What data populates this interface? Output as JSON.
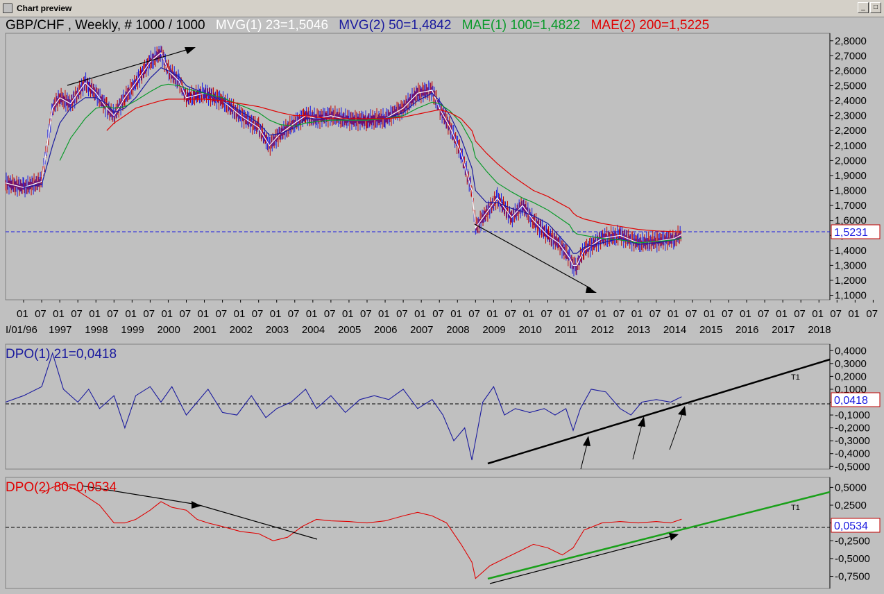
{
  "window": {
    "title": "Chart preview"
  },
  "header": {
    "instrument": "GBP/CHF , Weekly, # 1000 / 1000",
    "mvg1": {
      "text": "MVG(1) 23=1,5046",
      "color": "#ffffff"
    },
    "mvg2": {
      "text": "MVG(2) 50=1,4842",
      "color": "#1a1a9e"
    },
    "mae1": {
      "text": "MAE(1) 100=1,4822",
      "color": "#0a9a2a"
    },
    "mae2": {
      "text": "MAE(2) 200=1,5225",
      "color": "#e00000"
    }
  },
  "x_axis": {
    "month_ticks": [
      "01",
      "07",
      "01",
      "07",
      "01",
      "07",
      "01",
      "07",
      "01",
      "07",
      "01",
      "07",
      "01",
      "07",
      "01",
      "07",
      "01",
      "07",
      "01",
      "07",
      "01",
      "07",
      "01",
      "07",
      "01",
      "07",
      "01",
      "07",
      "01",
      "07",
      "01",
      "07",
      "01",
      "07",
      "01",
      "07",
      "01",
      "07",
      "01",
      "07",
      "01",
      "07",
      "01",
      "07",
      "01",
      "07",
      "01",
      "07",
      "01"
    ],
    "year_ticks": [
      "I/01/96",
      "1997",
      "1998",
      "1999",
      "2000",
      "2001",
      "2002",
      "2003",
      "2004",
      "2005",
      "2006",
      "2007",
      "2008",
      "2009",
      "2010",
      "2011",
      "2012",
      "2013",
      "2014",
      "2015",
      "2016",
      "2017",
      "2018"
    ]
  },
  "chart_data": [
    {
      "type": "line",
      "panel": "price",
      "ylim": [
        1.07,
        2.85
      ],
      "y_ticks": [
        "2,8000",
        "2,7000",
        "2,6000",
        "2,5000",
        "2,4000",
        "2,3000",
        "2,2000",
        "2,1000",
        "2,0000",
        "1,9000",
        "1,8000",
        "1,7000",
        "1,6000",
        "1,5000",
        "1,4000",
        "1,3000",
        "1,2000",
        "1,1000"
      ],
      "x": [
        1996.0,
        1996.5,
        1997.0,
        1997.3,
        1997.5,
        1997.8,
        1998.2,
        1998.5,
        1998.8,
        1999.0,
        1999.3,
        1999.6,
        2000.0,
        2000.3,
        2000.5,
        2000.8,
        2001.0,
        2001.5,
        2002.0,
        2002.5,
        2003.0,
        2003.3,
        2003.6,
        2004.0,
        2004.3,
        2004.6,
        2005.0,
        2005.5,
        2006.0,
        2006.5,
        2007.0,
        2007.4,
        2007.8,
        2008.0,
        2008.3,
        2008.6,
        2008.9,
        2009.0,
        2009.3,
        2009.6,
        2010.0,
        2010.3,
        2010.6,
        2011.0,
        2011.3,
        2011.6,
        2011.7,
        2011.8,
        2012.0,
        2012.5,
        2013.0,
        2013.5,
        2014.0,
        2014.5,
        2014.7
      ],
      "series": [
        {
          "name": "MVG(1) 23",
          "values": [
            1.85,
            1.82,
            1.86,
            2.35,
            2.42,
            2.38,
            2.52,
            2.45,
            2.35,
            2.3,
            2.42,
            2.52,
            2.66,
            2.72,
            2.6,
            2.53,
            2.42,
            2.45,
            2.4,
            2.3,
            2.22,
            2.1,
            2.18,
            2.25,
            2.3,
            2.28,
            2.3,
            2.27,
            2.27,
            2.28,
            2.35,
            2.45,
            2.47,
            2.35,
            2.22,
            2.05,
            1.8,
            1.55,
            1.65,
            1.75,
            1.62,
            1.7,
            1.6,
            1.5,
            1.45,
            1.35,
            1.3,
            1.3,
            1.4,
            1.48,
            1.5,
            1.45,
            1.46,
            1.48,
            1.5046
          ],
          "color": "#ffffff"
        },
        {
          "name": "MVG(2) 50",
          "values": [
            null,
            1.82,
            1.84,
            2.1,
            2.25,
            2.35,
            2.42,
            2.42,
            2.38,
            2.32,
            2.35,
            2.42,
            2.55,
            2.62,
            2.6,
            2.56,
            2.5,
            2.45,
            2.4,
            2.33,
            2.25,
            2.17,
            2.18,
            2.22,
            2.28,
            2.28,
            2.28,
            2.27,
            2.27,
            2.28,
            2.32,
            2.4,
            2.45,
            2.4,
            2.3,
            2.15,
            1.95,
            1.8,
            1.72,
            1.72,
            1.68,
            1.66,
            1.63,
            1.58,
            1.5,
            1.42,
            1.38,
            1.38,
            1.42,
            1.45,
            1.48,
            1.44,
            1.45,
            1.47,
            1.4842
          ],
          "color": "#1a1a9e"
        },
        {
          "name": "MAE(1) 100",
          "values": [
            null,
            null,
            null,
            null,
            2.0,
            2.15,
            2.28,
            2.35,
            2.36,
            2.35,
            2.36,
            2.4,
            2.46,
            2.5,
            2.51,
            2.5,
            2.48,
            2.45,
            2.42,
            2.37,
            2.32,
            2.27,
            2.24,
            2.23,
            2.25,
            2.26,
            2.27,
            2.27,
            2.27,
            2.28,
            2.3,
            2.35,
            2.39,
            2.38,
            2.33,
            2.25,
            2.12,
            2.02,
            1.93,
            1.85,
            1.79,
            1.75,
            1.72,
            1.67,
            1.62,
            1.57,
            1.53,
            1.51,
            1.5,
            1.48,
            1.47,
            1.45,
            1.46,
            1.47,
            1.4822
          ],
          "color": "#0a9a2a"
        },
        {
          "name": "MAE(2) 200",
          "values": [
            null,
            null,
            null,
            null,
            null,
            null,
            null,
            null,
            2.2,
            2.25,
            2.3,
            2.35,
            2.38,
            2.4,
            2.41,
            2.41,
            2.41,
            2.41,
            2.4,
            2.38,
            2.36,
            2.34,
            2.32,
            2.3,
            2.3,
            2.29,
            2.28,
            2.28,
            2.28,
            2.28,
            2.29,
            2.31,
            2.33,
            2.34,
            2.32,
            2.28,
            2.2,
            2.13,
            2.05,
            1.98,
            1.9,
            1.85,
            1.8,
            1.76,
            1.72,
            1.68,
            1.65,
            1.63,
            1.61,
            1.58,
            1.56,
            1.54,
            1.53,
            1.525,
            1.5225
          ],
          "color": "#e00000"
        }
      ],
      "last_value": "1,5231"
    },
    {
      "type": "line",
      "panel": "dpo1",
      "title": "DPO(1) 21=0,0418",
      "ylim": [
        -0.52,
        0.45
      ],
      "y_ticks": [
        "0,4000",
        "0,3000",
        "0,2000",
        "0,1000",
        "0,0000",
        "-0,1000",
        "-0,2000",
        "-0,3000",
        "-0,4000",
        "-0,5000"
      ],
      "x": [
        1996.0,
        1996.5,
        1997.0,
        1997.3,
        1997.6,
        1998.0,
        1998.3,
        1998.6,
        1999.0,
        1999.3,
        1999.6,
        2000.0,
        2000.3,
        2000.6,
        2001.0,
        2001.3,
        2001.6,
        2002.0,
        2002.4,
        2002.8,
        2003.2,
        2003.5,
        2003.9,
        2004.3,
        2004.6,
        2005.0,
        2005.4,
        2005.8,
        2006.2,
        2006.6,
        2007.0,
        2007.4,
        2007.8,
        2008.1,
        2008.4,
        2008.7,
        2008.9,
        2009.0,
        2009.2,
        2009.5,
        2009.8,
        2010.1,
        2010.5,
        2010.9,
        2011.2,
        2011.5,
        2011.7,
        2011.9,
        2012.2,
        2012.6,
        2013.0,
        2013.3,
        2013.6,
        2014.0,
        2014.4,
        2014.7
      ],
      "series": [
        {
          "name": "DPO(1) 21",
          "values": [
            0.0,
            0.05,
            0.12,
            0.38,
            0.1,
            0.0,
            0.1,
            -0.05,
            0.05,
            -0.2,
            0.05,
            0.12,
            0.0,
            0.12,
            -0.1,
            0.0,
            0.1,
            -0.08,
            -0.1,
            0.05,
            -0.12,
            -0.05,
            0.0,
            0.1,
            -0.05,
            0.05,
            -0.08,
            0.02,
            0.05,
            0.02,
            0.1,
            -0.05,
            0.02,
            -0.1,
            -0.3,
            -0.2,
            -0.45,
            -0.3,
            0.0,
            0.12,
            -0.1,
            -0.05,
            -0.08,
            -0.05,
            -0.1,
            -0.05,
            -0.22,
            -0.05,
            0.1,
            0.08,
            -0.05,
            -0.1,
            0.0,
            0.02,
            0.0,
            0.0418
          ],
          "color": "#1a1a9e"
        }
      ],
      "last_value": "0,0418",
      "trendline_label": "T1"
    },
    {
      "type": "line",
      "panel": "dpo2",
      "title": "DPO(2) 80=0,0534",
      "ylim": [
        -0.92,
        0.64
      ],
      "y_ticks": [
        "0,5000",
        "0,2500",
        "0,0000",
        "-0,2500",
        "-0,5000",
        "-0,7500"
      ],
      "x": [
        1997.0,
        1997.3,
        1997.6,
        1998.0,
        1998.3,
        1998.6,
        1999.0,
        1999.3,
        1999.6,
        2000.0,
        2000.3,
        2000.6,
        2001.0,
        2001.3,
        2001.6,
        2002.0,
        2002.5,
        2003.0,
        2003.4,
        2003.8,
        2004.2,
        2004.6,
        2005.0,
        2005.5,
        2006.0,
        2006.5,
        2007.0,
        2007.4,
        2007.8,
        2008.2,
        2008.6,
        2008.9,
        2009.0,
        2009.4,
        2009.8,
        2010.2,
        2010.6,
        2011.0,
        2011.4,
        2011.7,
        2012.0,
        2012.5,
        2013.0,
        2013.5,
        2014.0,
        2014.4,
        2014.7
      ],
      "series": [
        {
          "name": "DPO(2) 80",
          "values": [
            0.42,
            0.5,
            0.55,
            0.45,
            0.35,
            0.25,
            0.0,
            0.0,
            0.05,
            0.18,
            0.3,
            0.22,
            0.18,
            0.05,
            0.0,
            -0.05,
            -0.12,
            -0.15,
            -0.25,
            -0.2,
            -0.05,
            0.05,
            0.03,
            0.02,
            0.0,
            0.03,
            0.1,
            0.15,
            0.1,
            0.0,
            -0.3,
            -0.55,
            -0.78,
            -0.6,
            -0.5,
            -0.4,
            -0.3,
            -0.35,
            -0.45,
            -0.35,
            -0.1,
            0.0,
            0.02,
            0.0,
            0.02,
            0.0,
            0.0534
          ],
          "color": "#e00000"
        }
      ],
      "last_value": "0,0534",
      "trendline_label": "T1"
    }
  ]
}
